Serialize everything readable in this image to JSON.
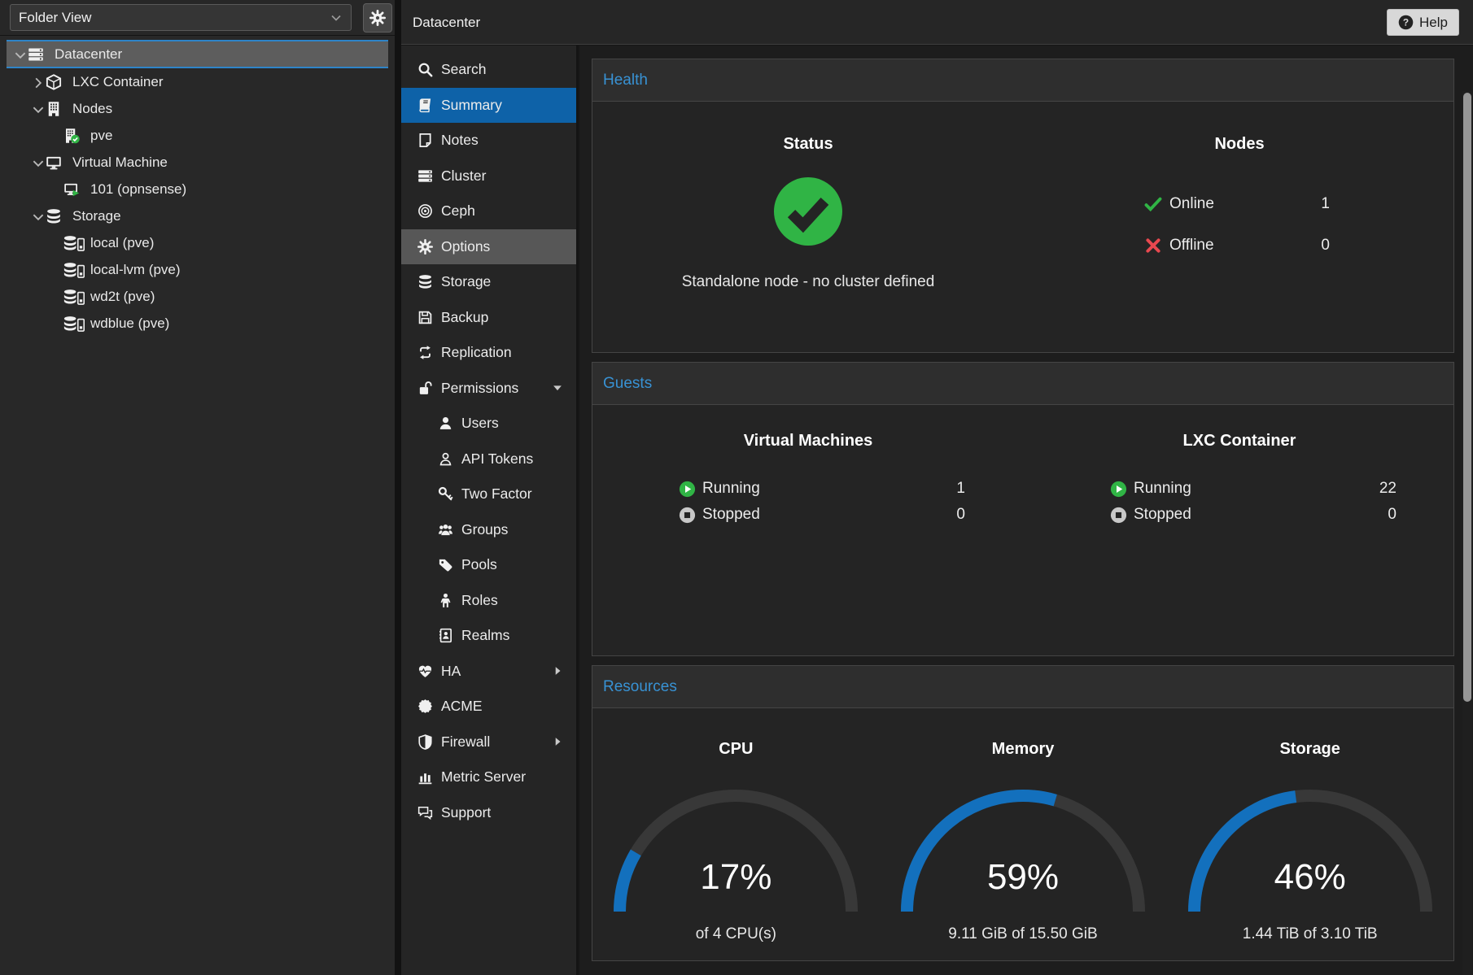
{
  "colors": {
    "accent_blue": "#3892d4",
    "selection_blue": "#0e62a8",
    "gauge_blue": "#1370bd",
    "gauge_track": "#383838",
    "status_green": "#30b445",
    "status_red": "#e8484f"
  },
  "left_panel": {
    "view_selector": {
      "value": "Folder View",
      "chevron_icon": "chevron-down-icon"
    },
    "settings_icon": "gear-icon",
    "tree": [
      {
        "label": "Datacenter",
        "icon": "server-stack-icon",
        "level": 0,
        "expander": "down",
        "selected": true
      },
      {
        "label": "LXC Container",
        "icon": "cube-icon",
        "level": 1,
        "expander": "right"
      },
      {
        "label": "Nodes",
        "icon": "building-icon",
        "level": 1,
        "expander": "down"
      },
      {
        "label": "pve",
        "icon": "node-online-icon",
        "level": 2,
        "expander": "none"
      },
      {
        "label": "Virtual Machine",
        "icon": "monitor-icon",
        "level": 1,
        "expander": "down"
      },
      {
        "label": "101 (opnsense)",
        "icon": "vm-running-icon",
        "level": 2,
        "expander": "none"
      },
      {
        "label": "Storage",
        "icon": "database-icon",
        "level": 1,
        "expander": "down"
      },
      {
        "label": "local (pve)",
        "icon": "storage-disk-icon",
        "level": 2,
        "expander": "none"
      },
      {
        "label": "local-lvm (pve)",
        "icon": "storage-disk-icon",
        "level": 2,
        "expander": "none"
      },
      {
        "label": "wd2t (pve)",
        "icon": "storage-disk-icon",
        "level": 2,
        "expander": "none"
      },
      {
        "label": "wdblue (pve)",
        "icon": "storage-disk-icon",
        "level": 2,
        "expander": "none"
      }
    ]
  },
  "header": {
    "title": "Datacenter",
    "help_label": "Help",
    "help_icon": "question-circle-icon"
  },
  "menu": [
    {
      "label": "Search",
      "icon": "search-icon"
    },
    {
      "label": "Summary",
      "icon": "book-icon",
      "selected": true
    },
    {
      "label": "Notes",
      "icon": "note-icon"
    },
    {
      "label": "Cluster",
      "icon": "cluster-icon"
    },
    {
      "label": "Ceph",
      "icon": "ceph-icon"
    },
    {
      "label": "Options",
      "icon": "gear-icon",
      "hover": true
    },
    {
      "label": "Storage",
      "icon": "database-icon"
    },
    {
      "label": "Backup",
      "icon": "floppy-icon"
    },
    {
      "label": "Replication",
      "icon": "replication-icon"
    },
    {
      "label": "Permissions",
      "icon": "unlock-icon",
      "arrow": "down"
    },
    {
      "label": "Users",
      "icon": "user-icon",
      "indent": true
    },
    {
      "label": "API Tokens",
      "icon": "user-outline-icon",
      "indent": true
    },
    {
      "label": "Two Factor",
      "icon": "key-icon",
      "indent": true
    },
    {
      "label": "Groups",
      "icon": "users-icon",
      "indent": true
    },
    {
      "label": "Pools",
      "icon": "tag-icon",
      "indent": true
    },
    {
      "label": "Roles",
      "icon": "person-icon",
      "indent": true
    },
    {
      "label": "Realms",
      "icon": "address-book-icon",
      "indent": true
    },
    {
      "label": "HA",
      "icon": "heartbeat-icon",
      "arrow": "right"
    },
    {
      "label": "ACME",
      "icon": "seal-icon"
    },
    {
      "label": "Firewall",
      "icon": "shield-icon",
      "arrow": "right"
    },
    {
      "label": "Metric Server",
      "icon": "chart-bar-icon"
    },
    {
      "label": "Support",
      "icon": "comments-icon"
    }
  ],
  "panels": {
    "health": {
      "title": "Health",
      "status": {
        "heading": "Status",
        "icon": "check-circle-icon",
        "message": "Standalone node - no cluster defined"
      },
      "nodes": {
        "heading": "Nodes",
        "rows": [
          {
            "label": "Online",
            "value": "1",
            "icon": "check-icon"
          },
          {
            "label": "Offline",
            "value": "0",
            "icon": "cross-icon"
          }
        ]
      }
    },
    "guests": {
      "title": "Guests",
      "columns": [
        {
          "heading": "Virtual Machines",
          "rows": [
            {
              "label": "Running",
              "value": "1",
              "icon": "running-icon"
            },
            {
              "label": "Stopped",
              "value": "0",
              "icon": "stopped-icon"
            }
          ]
        },
        {
          "heading": "LXC Container",
          "rows": [
            {
              "label": "Running",
              "value": "22",
              "icon": "running-icon"
            },
            {
              "label": "Stopped",
              "value": "0",
              "icon": "stopped-icon"
            }
          ]
        }
      ]
    },
    "resources": {
      "title": "Resources",
      "gauges": [
        {
          "type": "gauge",
          "title": "CPU",
          "percent": 17,
          "percent_label": "17%",
          "subtitle": "of 4 CPU(s)"
        },
        {
          "type": "gauge",
          "title": "Memory",
          "percent": 59,
          "percent_label": "59%",
          "subtitle": "9.11 GiB of 15.50 GiB"
        },
        {
          "type": "gauge",
          "title": "Storage",
          "percent": 46,
          "percent_label": "46%",
          "subtitle": "1.44 TiB of 3.10 TiB"
        }
      ]
    }
  }
}
